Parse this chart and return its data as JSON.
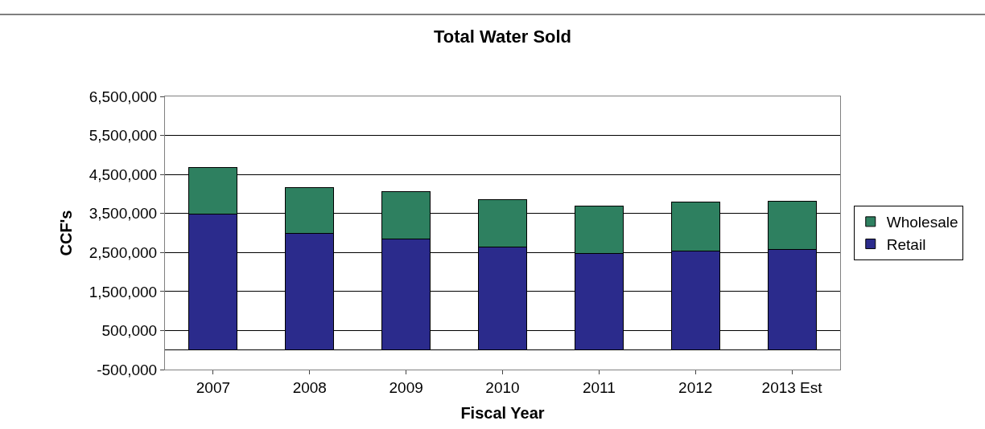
{
  "chart_data": {
    "type": "bar",
    "title": "Total Water Sold",
    "xlabel": "Fiscal Year",
    "ylabel": "CCF's",
    "categories": [
      "2007",
      "2008",
      "2009",
      "2010",
      "2011",
      "2012",
      "2013 Est"
    ],
    "stacked": true,
    "series": [
      {
        "name": "Retail",
        "color": "#2b2b8c",
        "values": [
          3480000,
          3000000,
          2850000,
          2630000,
          2470000,
          2540000,
          2580000
        ]
      },
      {
        "name": "Wholesale",
        "color": "#2e8060",
        "values": [
          1190000,
          1170000,
          1210000,
          1230000,
          1230000,
          1250000,
          1240000
        ]
      }
    ],
    "ylim": [
      -500000,
      6500000
    ],
    "yticks": [
      {
        "value": -500000,
        "label": "-500,000"
      },
      {
        "value": 500000,
        "label": "500,000"
      },
      {
        "value": 1500000,
        "label": "1,500,000"
      },
      {
        "value": 2500000,
        "label": "2,500,000"
      },
      {
        "value": 3500000,
        "label": "3,500,000"
      },
      {
        "value": 4500000,
        "label": "4,500,000"
      },
      {
        "value": 5500000,
        "label": "5,500,000"
      },
      {
        "value": 6500000,
        "label": "6,500,000"
      }
    ],
    "grid": "y",
    "legend": "right"
  }
}
